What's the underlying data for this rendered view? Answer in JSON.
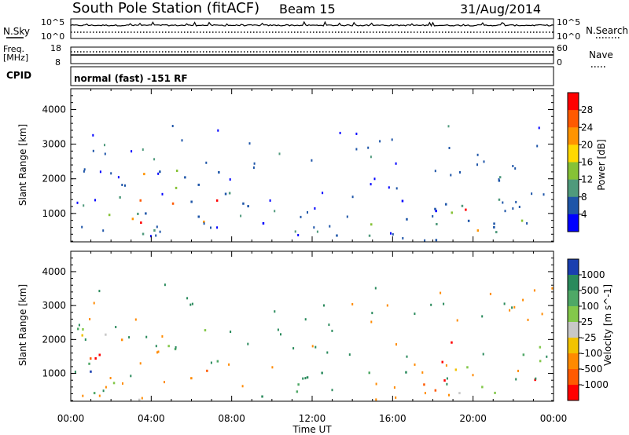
{
  "header": {
    "station": "South Pole Station (fitACF)",
    "beam": "Beam 15",
    "date": "31/Aug/2014"
  },
  "top_panels": {
    "nsky_label": "N.Sky",
    "nsky_ticks": [
      "10^5",
      "10^0"
    ],
    "nsearch_label": "N.Search",
    "nsearch_ticks": [
      "10^5",
      "10^0"
    ],
    "freq_label": "Freq.",
    "freq_unit": "[MHz]",
    "freq_ticks": [
      "18",
      "8"
    ],
    "nave_label": "Nave",
    "nave_ticks": [
      "60",
      "0"
    ],
    "cpid_label": "CPID",
    "cpid_text": "normal (fast) -151 RF"
  },
  "chart_data": [
    {
      "type": "heatmap",
      "title": "",
      "xlabel": "Time UT",
      "ylabel": "Slant Range [km]",
      "xlim": [
        "00:00",
        "24:00"
      ],
      "ylim": [
        180,
        4600
      ],
      "x_ticks": [
        "00:00",
        "04:00",
        "08:00",
        "12:00",
        "16:00",
        "20:00",
        "00:00"
      ],
      "y_ticks": [
        "1000",
        "2000",
        "3000",
        "4000"
      ],
      "colorbar_label": "Power [dB]",
      "colorbar_ticks": [
        "28",
        "24",
        "20",
        "16",
        "12",
        "8",
        "4"
      ],
      "colorbar_colors": [
        "#ff0000",
        "#ff5a00",
        "#ff9400",
        "#ffd900",
        "#86c236",
        "#4f9a7c",
        "#1e55a8",
        "#0000ff"
      ],
      "scatter_regions": [
        {
          "t0": 0.3,
          "t1": 8.0,
          "r0": 250,
          "r1": 2400,
          "level": "medium"
        },
        {
          "t0": 2.2,
          "t1": 7.4,
          "r0": 700,
          "r1": 1500,
          "level": "high"
        },
        {
          "t0": 8.3,
          "t1": 10.0,
          "r0": 250,
          "r1": 1600,
          "level": "low"
        },
        {
          "t0": 11.5,
          "t1": 15.0,
          "r0": 250,
          "r1": 900,
          "level": "medium"
        },
        {
          "t0": 15.0,
          "t1": 18.5,
          "r0": 250,
          "r1": 1500,
          "level": "low"
        },
        {
          "t0": 18.0,
          "t1": 23.5,
          "r0": 300,
          "r1": 2200,
          "level": "medium"
        },
        {
          "t0": 19.5,
          "t1": 22.0,
          "r0": 500,
          "r1": 1200,
          "level": "high"
        }
      ]
    },
    {
      "type": "heatmap",
      "title": "",
      "xlabel": "Time UT",
      "ylabel": "Slant Range [km]",
      "xlim": [
        "00:00",
        "24:00"
      ],
      "ylim": [
        180,
        4600
      ],
      "x_ticks": [
        "00:00",
        "04:00",
        "08:00",
        "12:00",
        "16:00",
        "20:00",
        "00:00"
      ],
      "y_ticks": [
        "1000",
        "2000",
        "3000",
        "4000"
      ],
      "colorbar_label": "Velocity [m s^-1]",
      "colorbar_ticks": [
        "1000",
        "500",
        "100",
        "25",
        "-25",
        "-100",
        "-500",
        "-1000"
      ],
      "colorbar_colors": [
        "#1a3fb0",
        "#2a8a5c",
        "#4fa866",
        "#83c84a",
        "#c8c8c8",
        "#f2c300",
        "#ff8a00",
        "#ff5a00",
        "#ff0000"
      ],
      "scatter_regions": [
        {
          "t0": 0.3,
          "t1": 8.0,
          "r0": 250,
          "r1": 2500,
          "level": "mixed"
        },
        {
          "t0": 8.3,
          "t1": 15.0,
          "r0": 250,
          "r1": 1100,
          "level": "green"
        },
        {
          "t0": 15.0,
          "t1": 18.5,
          "r0": 500,
          "r1": 1200,
          "level": "orange"
        },
        {
          "t0": 18.0,
          "t1": 23.5,
          "r0": 300,
          "r1": 2200,
          "level": "mixed"
        }
      ]
    }
  ]
}
